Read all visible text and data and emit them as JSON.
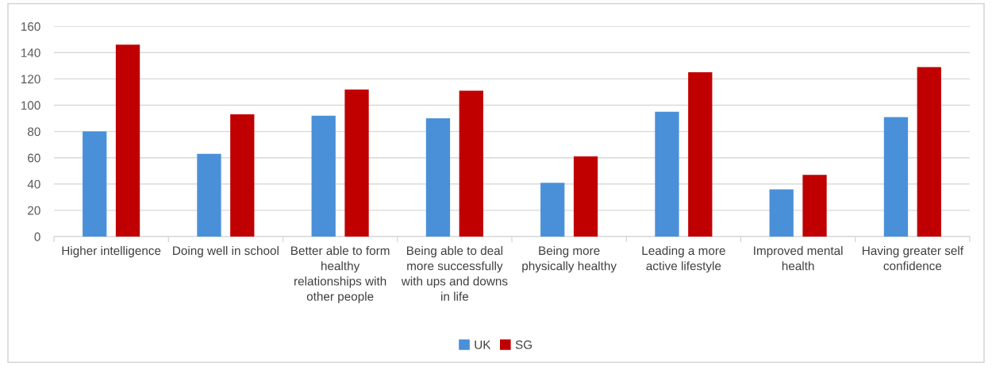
{
  "chart_data": {
    "type": "bar",
    "categories": [
      "Higher intelligence",
      "Doing well in school",
      "Better able to form healthy relationships with other people",
      "Being able to deal more successfully with ups and downs in life",
      "Being more physically healthy",
      "Leading a more active lifestyle",
      "Improved mental health",
      "Having greater self confidence"
    ],
    "series": [
      {
        "name": "UK",
        "color": "#4a90d9",
        "values": [
          80,
          63,
          92,
          90,
          41,
          95,
          36,
          91
        ]
      },
      {
        "name": "SG",
        "color": "#c00000",
        "values": [
          146,
          93,
          112,
          111,
          61,
          125,
          47,
          129
        ]
      }
    ],
    "ylim": [
      0,
      160
    ],
    "yticks": [
      0,
      20,
      40,
      60,
      80,
      100,
      120,
      140,
      160
    ],
    "grid": "y",
    "legend": "bottom"
  }
}
